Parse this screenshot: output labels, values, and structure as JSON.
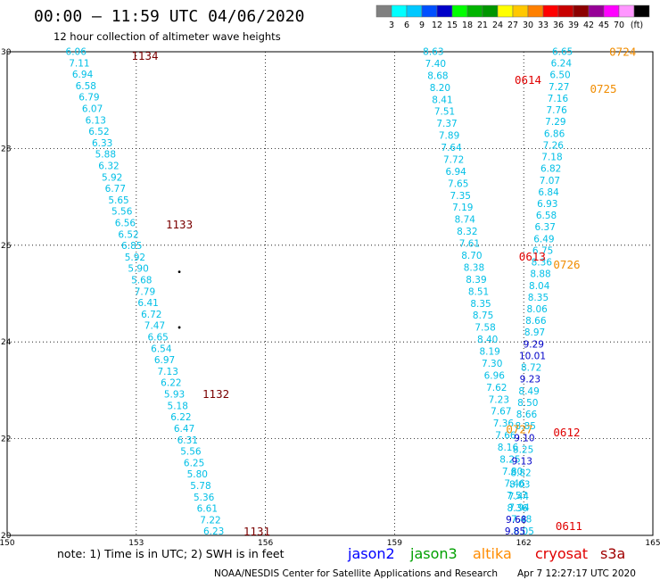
{
  "header": {
    "title": "00:00 – 11:59 UTC 04/06/2020",
    "subtitle": "12 hour collection of altimeter wave heights"
  },
  "legend": {
    "colors": [
      "#808080",
      "#00ffff",
      "#00c8ff",
      "#0050ff",
      "#0000c8",
      "#00ff00",
      "#00b400",
      "#009600",
      "#ffff00",
      "#ffc800",
      "#ff8000",
      "#ff0000",
      "#c80000",
      "#8c0000",
      "#960096",
      "#ff00ff",
      "#ff96ff",
      "#000000"
    ],
    "labels": [
      "3",
      "6",
      "9",
      "12",
      "15",
      "18",
      "21",
      "24",
      "27",
      "30",
      "33",
      "36",
      "39",
      "42",
      "45",
      "70"
    ],
    "unit": "(ft)"
  },
  "footer": {
    "note": "note: 1) Time is in UTC; 2) SWH is in feet",
    "satellites": [
      {
        "name": "jason2",
        "color": "#0000ff"
      },
      {
        "name": "jason3",
        "color": "#00a000"
      },
      {
        "name": "altika",
        "color": "#ff8c00"
      },
      {
        "name": "cryosat",
        "color": "#e00000"
      },
      {
        "name": "s3a",
        "color": "#a00000"
      }
    ],
    "credit": "NOAA/NESDIS Center for Satellite Applications and Research",
    "timestamp": "Apr  7 12:27:17 UTC 2020"
  },
  "chart_data": {
    "type": "scatter",
    "xlim": [
      150,
      165
    ],
    "ylim": [
      20,
      30
    ],
    "x_ticks": [
      "150",
      "153",
      "156",
      "159",
      "162",
      "165"
    ],
    "y_ticks": [
      "20",
      "22",
      "24",
      "26",
      "28",
      "30"
    ],
    "grid": true,
    "swath_start_lon": [
      151.6,
      159.9,
      162.9
    ],
    "swath_end_lon": [
      154.8,
      162.0,
      161.8
    ],
    "colors": {
      "cyan": "#00bfe6",
      "blue": "#0000c8",
      "dark": "#7a0000",
      "red": "#e00000",
      "orange": "#f08c00",
      "black": "#000000"
    },
    "tracks": [
      {
        "values": [
          "6.06",
          "7.11",
          "6.94",
          "6.58",
          "6.79",
          "6.07",
          "6.13",
          "6.52",
          "6.33",
          "5.88",
          "6.32",
          "5.92",
          "6.77",
          "5.65",
          "5.56",
          "6.56",
          "6.52",
          "6.85",
          "5.92",
          "5.90",
          "5.68",
          "7.79",
          "6.41",
          "6.72",
          "7.47",
          "6.65",
          "6.54",
          "6.97",
          "7.13",
          "6.22",
          "5.93",
          "5.18",
          "6.22",
          "6.47",
          "6.31",
          "5.56",
          "6.25",
          "5.80",
          "5.78",
          "5.36",
          "6.61",
          "7.22",
          "6.23"
        ],
        "colors": [
          "cyan",
          "cyan",
          "cyan",
          "cyan",
          "cyan",
          "cyan",
          "cyan",
          "cyan",
          "cyan",
          "cyan",
          "cyan",
          "cyan",
          "cyan",
          "cyan",
          "cyan",
          "cyan",
          "cyan",
          "cyan",
          "cyan",
          "cyan",
          "cyan",
          "cyan",
          "cyan",
          "cyan",
          "cyan",
          "cyan",
          "cyan",
          "cyan",
          "cyan",
          "cyan",
          "cyan",
          "cyan",
          "cyan",
          "cyan",
          "cyan",
          "cyan",
          "cyan",
          "cyan",
          "cyan",
          "cyan",
          "cyan",
          "cyan",
          "cyan"
        ]
      },
      {
        "values": [
          "8.63",
          "7.40",
          "8.68",
          "8.20",
          "8.41",
          "7.51",
          "7.37",
          "7.89",
          "7.64",
          "7.72",
          "6.94",
          "7.65",
          "7.35",
          "7.19",
          "8.74",
          "8.32",
          "7.61",
          "8.70",
          "8.38",
          "8.39",
          "8.51",
          "8.35",
          "8.75",
          "7.58",
          "8.40",
          "8.19",
          "7.30",
          "6.96",
          "7.62",
          "7.23",
          "7.67",
          "7.36",
          "7.66",
          "8.16",
          "8.25",
          "7.80",
          "7.46",
          "7.57",
          "7.94",
          "7.48",
          "8.05"
        ],
        "colors": [
          "cyan",
          "cyan",
          "cyan",
          "cyan",
          "cyan",
          "cyan",
          "cyan",
          "cyan",
          "cyan",
          "cyan",
          "cyan",
          "cyan",
          "cyan",
          "cyan",
          "cyan",
          "cyan",
          "cyan",
          "cyan",
          "cyan",
          "cyan",
          "cyan",
          "cyan",
          "cyan",
          "cyan",
          "cyan",
          "cyan",
          "cyan",
          "cyan",
          "cyan",
          "cyan",
          "cyan",
          "cyan",
          "cyan",
          "cyan",
          "cyan",
          "cyan",
          "cyan",
          "cyan",
          "cyan",
          "cyan",
          "cyan"
        ]
      },
      {
        "values": [
          "6.65",
          "6.24",
          "6.50",
          "7.27",
          "7.16",
          "7.76",
          "7.29",
          "6.86",
          "7.26",
          "7.18",
          "6.82",
          "7.07",
          "6.84",
          "6.93",
          "6.58",
          "6.37",
          "6.49",
          "6.75",
          "8.36",
          "8.88",
          "8.04",
          "8.35",
          "8.06",
          "8.66",
          "8.97",
          "9.29",
          "10.01",
          "8.72",
          "9.23",
          "8.49",
          "8.50",
          "8.66",
          "8.85",
          "9.10",
          "8.25",
          "9.13",
          "8.82",
          "8.03",
          "7.44",
          "8.36",
          "9.68",
          "9.85"
        ],
        "colors": [
          "cyan",
          "cyan",
          "cyan",
          "cyan",
          "cyan",
          "cyan",
          "cyan",
          "cyan",
          "cyan",
          "cyan",
          "cyan",
          "cyan",
          "cyan",
          "cyan",
          "cyan",
          "cyan",
          "cyan",
          "cyan",
          "cyan",
          "cyan",
          "cyan",
          "cyan",
          "cyan",
          "cyan",
          "cyan",
          "blue",
          "blue",
          "cyan",
          "blue",
          "cyan",
          "cyan",
          "cyan",
          "cyan",
          "blue",
          "cyan",
          "blue",
          "cyan",
          "cyan",
          "cyan",
          "cyan",
          "blue",
          "blue"
        ]
      }
    ],
    "annotations": [
      {
        "text": "1134",
        "lon": 153.2,
        "lat": 29.92,
        "color": "dark"
      },
      {
        "text": "1133",
        "lon": 154.0,
        "lat": 26.43,
        "color": "dark"
      },
      {
        "text": "1132",
        "lon": 154.85,
        "lat": 22.92,
        "color": "dark"
      },
      {
        "text": "1131",
        "lon": 155.8,
        "lat": 20.08,
        "color": "dark"
      },
      {
        "text": "0724",
        "lon": 164.3,
        "lat": 30.0,
        "color": "orange"
      },
      {
        "text": "0614",
        "lon": 162.1,
        "lat": 29.42,
        "color": "red"
      },
      {
        "text": "0725",
        "lon": 163.85,
        "lat": 29.23,
        "color": "orange"
      },
      {
        "text": "0613",
        "lon": 162.2,
        "lat": 25.77,
        "color": "red"
      },
      {
        "text": "0726",
        "lon": 163.0,
        "lat": 25.6,
        "color": "orange"
      },
      {
        "text": "0727",
        "lon": 161.9,
        "lat": 22.2,
        "color": "orange"
      },
      {
        "text": "0612",
        "lon": 163.0,
        "lat": 22.13,
        "color": "red"
      },
      {
        "text": "0611",
        "lon": 163.05,
        "lat": 20.19,
        "color": "red"
      }
    ],
    "markers": [
      {
        "lon": 154.0,
        "lat": 25.45
      },
      {
        "lon": 154.0,
        "lat": 24.3
      }
    ]
  }
}
